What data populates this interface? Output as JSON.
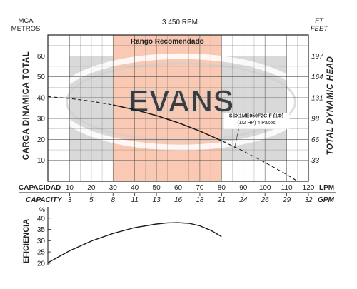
{
  "chart_data": [
    {
      "type": "line",
      "title": "3 450 RPM",
      "left_unit_top": "MCA",
      "left_unit_bottom": "METROS",
      "right_unit_top": "FT",
      "right_unit_bottom": "FEET",
      "ylabel": "CARGA DINAMICA TOTAL",
      "ylabel_right": "TOTAL DYNAMIC HEAD",
      "xlim": [
        0,
        120
      ],
      "ylim": [
        0,
        70
      ],
      "yticks": [
        10,
        20,
        30,
        40,
        50,
        60
      ],
      "yticks_right": [
        "33",
        "66",
        "98",
        "131",
        "164",
        "197"
      ],
      "recommended_range": {
        "label": "Rango Recomendado",
        "x_from": 30,
        "x_to": 80
      },
      "watermark": "EVANS",
      "annotation": {
        "line1": "SSX1ME050F2C-F (1Φ)",
        "line2": "(1/2 HP)  4 Pasos",
        "x": 86,
        "y": 16
      },
      "series": [
        {
          "style": "dashed",
          "x": [
            0,
            10,
            20,
            30,
            40,
            50,
            60,
            70,
            80,
            90,
            100,
            110,
            115
          ],
          "y": [
            40.5,
            39.6,
            38.3,
            36.5,
            34.2,
            31.4,
            28.0,
            24.0,
            19.4,
            14.4,
            9.0,
            3.2,
            0.0
          ]
        },
        {
          "style": "solid",
          "x": [
            30,
            40,
            50,
            60,
            70,
            80
          ],
          "y": [
            36.5,
            34.2,
            31.4,
            28.0,
            24.0,
            19.4
          ]
        }
      ]
    },
    {
      "type": "line",
      "ylabel": "EFICIENCIA",
      "yunit": "%",
      "xlim": [
        0,
        120
      ],
      "ylim": [
        19,
        45
      ],
      "yticks": [
        20,
        25,
        30,
        35,
        40
      ],
      "series": [
        {
          "style": "solid",
          "x": [
            0,
            10,
            20,
            30,
            40,
            50,
            55,
            60,
            65,
            70,
            75,
            80
          ],
          "y": [
            20.2,
            25.5,
            29.8,
            33.2,
            35.8,
            37.4,
            37.9,
            38.0,
            37.7,
            36.6,
            34.6,
            31.8
          ]
        }
      ]
    }
  ],
  "x_axes": {
    "capacity_lpm": {
      "label_left": "CAPACIDAD",
      "label_right": "LPM",
      "ticks": [
        10,
        20,
        30,
        40,
        50,
        60,
        70,
        80,
        90,
        100,
        110,
        120
      ]
    },
    "capacity_gpm": {
      "label_left": "CAPACITY",
      "label_right": "GPM",
      "ticks": [
        "3",
        "5",
        "8",
        "11",
        "13",
        "16",
        "18",
        "21",
        "24",
        "26",
        "29",
        "32"
      ]
    }
  },
  "colors": {
    "recommended_band": "#f9c9b3",
    "grey_zone": "#d9d9d9",
    "grid": "#444444",
    "curve": "#1a1a1a",
    "watermark": "#cfcfcf"
  }
}
